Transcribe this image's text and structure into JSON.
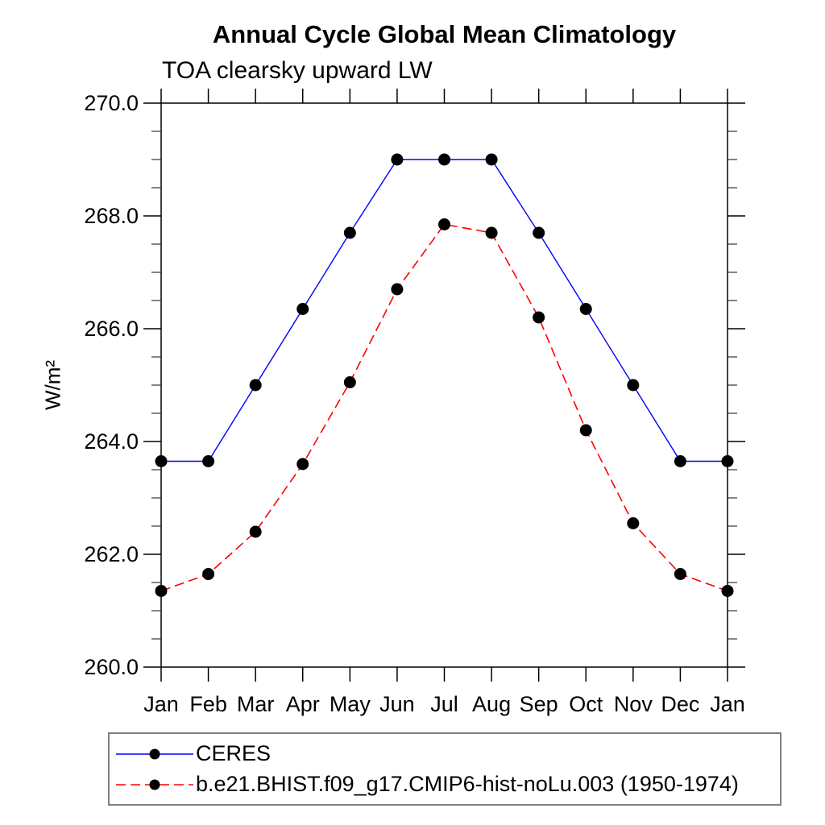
{
  "page": {
    "background_color": "#ffffff",
    "text_color": "#000000"
  },
  "chart_data": {
    "type": "line",
    "title": "Annual Cycle Global Mean Climatology",
    "subtitle": "TOA clearsky upward LW",
    "ylabel": "W/m²",
    "x_tick_labels": [
      "Jan",
      "Feb",
      "Mar",
      "Apr",
      "May",
      "Jun",
      "Jul",
      "Aug",
      "Sep",
      "Oct",
      "Nov",
      "Dec",
      "Jan"
    ],
    "ylim": [
      260.0,
      270.0
    ],
    "y_major_ticks": [
      260.0,
      262.0,
      264.0,
      266.0,
      268.0,
      270.0
    ],
    "y_major_tick_labels": [
      "260.0",
      "262.0",
      "264.0",
      "266.0",
      "268.0",
      "270.0"
    ],
    "y_minor_tick_step": 0.5,
    "grid": "off",
    "legend_position": "bottom-left",
    "series": [
      {
        "name": "CERES",
        "color": "#0000ff",
        "line_style": "solid",
        "line_width": 1.4,
        "marker": "filled-circle",
        "marker_color": "#000000",
        "values": [
          263.65,
          263.65,
          265.0,
          266.35,
          267.7,
          269.0,
          269.0,
          269.0,
          267.7,
          266.35,
          265.0,
          263.65,
          263.65
        ]
      },
      {
        "name": "b.e21.BHIST.f09_g17.CMIP6-hist-noLu.003 (1950-1974)",
        "color": "#ff0000",
        "line_style": "dashed",
        "line_width": 1.6,
        "marker": "filled-circle",
        "marker_color": "#000000",
        "values": [
          261.35,
          261.65,
          262.4,
          263.6,
          265.05,
          266.7,
          267.85,
          267.7,
          266.2,
          264.2,
          262.55,
          261.65,
          261.35
        ]
      }
    ]
  }
}
